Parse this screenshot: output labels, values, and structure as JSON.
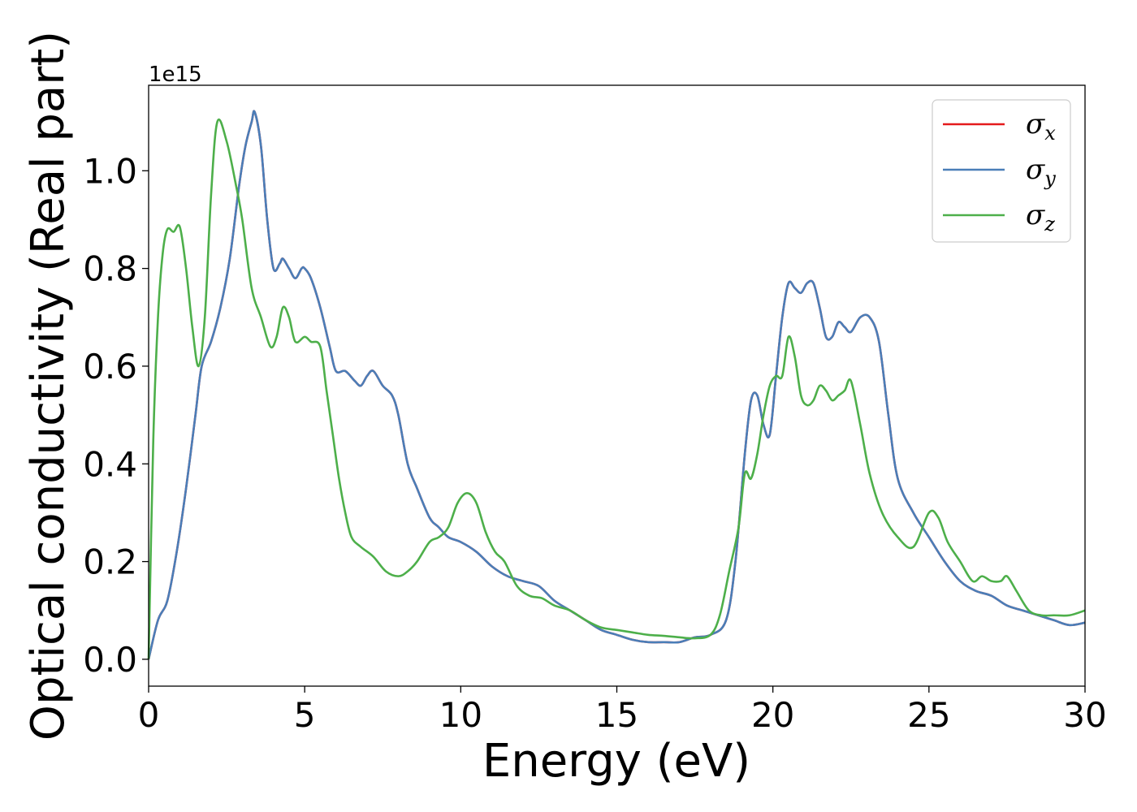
{
  "chart_data": {
    "type": "line",
    "title": "",
    "xlabel": "Energy (eV)",
    "ylabel": "Optical conductivity (Real part)",
    "y_offset_label": "1e15",
    "xlim": [
      0,
      30
    ],
    "ylim": [
      -0.055,
      1.175
    ],
    "xticks": [
      0,
      5,
      10,
      15,
      20,
      25,
      30
    ],
    "yticks": [
      0.0,
      0.2,
      0.4,
      0.6,
      0.8,
      1.0
    ],
    "xtick_labels": [
      "0",
      "5",
      "10",
      "15",
      "20",
      "25",
      "30"
    ],
    "ytick_labels": [
      "0.0",
      "0.2",
      "0.4",
      "0.6",
      "0.8",
      "1.0"
    ],
    "grid": false,
    "legend_position": "top-right",
    "series": [
      {
        "name": "σx",
        "symbol": "σ",
        "subscript": "x",
        "color": "#e41a1c",
        "x": [
          0,
          0.3,
          0.6,
          0.9,
          1.2,
          1.5,
          1.7,
          2.0,
          2.3,
          2.6,
          2.9,
          3.1,
          3.3,
          3.4,
          3.6,
          3.8,
          4.0,
          4.2,
          4.3,
          4.5,
          4.7,
          4.9,
          5.0,
          5.2,
          5.5,
          5.8,
          6.0,
          6.3,
          6.6,
          6.8,
          7.0,
          7.2,
          7.5,
          7.8,
          8.0,
          8.3,
          8.6,
          9.0,
          9.3,
          9.6,
          10.0,
          10.5,
          11.0,
          11.5,
          12.0,
          12.5,
          13.0,
          13.5,
          14.0,
          14.5,
          15.0,
          15.5,
          16.0,
          16.5,
          17.0,
          17.5,
          18.0,
          18.5,
          18.8,
          19.1,
          19.3,
          19.5,
          19.7,
          19.9,
          20.1,
          20.3,
          20.5,
          20.7,
          20.9,
          21.1,
          21.3,
          21.5,
          21.7,
          21.9,
          22.1,
          22.3,
          22.5,
          22.8,
          23.1,
          23.4,
          23.7,
          24.0,
          24.5,
          25.0,
          25.5,
          26.0,
          26.5,
          27.0,
          27.5,
          28.0,
          28.5,
          29.0,
          29.5,
          30.0
        ],
        "y": [
          0.0,
          0.08,
          0.12,
          0.22,
          0.35,
          0.5,
          0.6,
          0.65,
          0.72,
          0.82,
          0.97,
          1.05,
          1.1,
          1.12,
          1.05,
          0.9,
          0.8,
          0.81,
          0.82,
          0.8,
          0.78,
          0.8,
          0.8,
          0.78,
          0.72,
          0.64,
          0.59,
          0.59,
          0.57,
          0.56,
          0.58,
          0.59,
          0.56,
          0.54,
          0.5,
          0.4,
          0.35,
          0.29,
          0.27,
          0.25,
          0.24,
          0.22,
          0.19,
          0.17,
          0.16,
          0.15,
          0.12,
          0.1,
          0.08,
          0.06,
          0.05,
          0.04,
          0.035,
          0.035,
          0.035,
          0.045,
          0.05,
          0.08,
          0.2,
          0.42,
          0.53,
          0.54,
          0.48,
          0.46,
          0.58,
          0.7,
          0.77,
          0.76,
          0.75,
          0.77,
          0.77,
          0.72,
          0.66,
          0.66,
          0.69,
          0.68,
          0.67,
          0.7,
          0.7,
          0.65,
          0.5,
          0.37,
          0.3,
          0.25,
          0.2,
          0.16,
          0.14,
          0.13,
          0.11,
          0.1,
          0.09,
          0.08,
          0.07,
          0.075
        ]
      },
      {
        "name": "σy",
        "symbol": "σ",
        "subscript": "y",
        "color": "#4a7eb8",
        "x": [
          0,
          0.3,
          0.6,
          0.9,
          1.2,
          1.5,
          1.7,
          2.0,
          2.3,
          2.6,
          2.9,
          3.1,
          3.3,
          3.4,
          3.6,
          3.8,
          4.0,
          4.2,
          4.3,
          4.5,
          4.7,
          4.9,
          5.0,
          5.2,
          5.5,
          5.8,
          6.0,
          6.3,
          6.6,
          6.8,
          7.0,
          7.2,
          7.5,
          7.8,
          8.0,
          8.3,
          8.6,
          9.0,
          9.3,
          9.6,
          10.0,
          10.5,
          11.0,
          11.5,
          12.0,
          12.5,
          13.0,
          13.5,
          14.0,
          14.5,
          15.0,
          15.5,
          16.0,
          16.5,
          17.0,
          17.5,
          18.0,
          18.5,
          18.8,
          19.1,
          19.3,
          19.5,
          19.7,
          19.9,
          20.1,
          20.3,
          20.5,
          20.7,
          20.9,
          21.1,
          21.3,
          21.5,
          21.7,
          21.9,
          22.1,
          22.3,
          22.5,
          22.8,
          23.1,
          23.4,
          23.7,
          24.0,
          24.5,
          25.0,
          25.5,
          26.0,
          26.5,
          27.0,
          27.5,
          28.0,
          28.5,
          29.0,
          29.5,
          30.0
        ],
        "y": [
          0.0,
          0.08,
          0.12,
          0.22,
          0.35,
          0.5,
          0.6,
          0.65,
          0.72,
          0.82,
          0.97,
          1.05,
          1.1,
          1.12,
          1.05,
          0.9,
          0.8,
          0.81,
          0.82,
          0.8,
          0.78,
          0.8,
          0.8,
          0.78,
          0.72,
          0.64,
          0.59,
          0.59,
          0.57,
          0.56,
          0.58,
          0.59,
          0.56,
          0.54,
          0.5,
          0.4,
          0.35,
          0.29,
          0.27,
          0.25,
          0.24,
          0.22,
          0.19,
          0.17,
          0.16,
          0.15,
          0.12,
          0.1,
          0.08,
          0.06,
          0.05,
          0.04,
          0.035,
          0.035,
          0.035,
          0.045,
          0.05,
          0.08,
          0.2,
          0.42,
          0.53,
          0.54,
          0.48,
          0.46,
          0.58,
          0.7,
          0.77,
          0.76,
          0.75,
          0.77,
          0.77,
          0.72,
          0.66,
          0.66,
          0.69,
          0.68,
          0.67,
          0.7,
          0.7,
          0.65,
          0.5,
          0.37,
          0.3,
          0.25,
          0.2,
          0.16,
          0.14,
          0.13,
          0.11,
          0.1,
          0.09,
          0.08,
          0.07,
          0.075
        ]
      },
      {
        "name": "σz",
        "symbol": "σ",
        "subscript": "z",
        "color": "#4daf4a",
        "x": [
          0,
          0.15,
          0.3,
          0.45,
          0.6,
          0.8,
          1.0,
          1.2,
          1.4,
          1.6,
          1.8,
          2.0,
          2.2,
          2.5,
          2.8,
          3.0,
          3.3,
          3.6,
          3.9,
          4.1,
          4.3,
          4.5,
          4.7,
          5.0,
          5.2,
          5.5,
          5.7,
          5.9,
          6.1,
          6.3,
          6.5,
          6.8,
          7.2,
          7.6,
          8.0,
          8.3,
          8.6,
          9.0,
          9.3,
          9.6,
          9.9,
          10.2,
          10.5,
          10.8,
          11.1,
          11.4,
          11.8,
          12.2,
          12.6,
          13.0,
          13.5,
          14.0,
          14.5,
          15.0,
          15.5,
          16.0,
          16.5,
          17.0,
          17.5,
          18.0,
          18.3,
          18.6,
          18.9,
          19.1,
          19.3,
          19.5,
          19.7,
          19.9,
          20.1,
          20.3,
          20.5,
          20.7,
          20.9,
          21.1,
          21.3,
          21.5,
          21.7,
          21.9,
          22.1,
          22.3,
          22.5,
          22.8,
          23.1,
          23.5,
          24.0,
          24.5,
          25.0,
          25.3,
          25.6,
          26.0,
          26.4,
          26.7,
          27.0,
          27.3,
          27.5,
          27.8,
          28.2,
          28.6,
          29.0,
          29.5,
          30.0
        ],
        "y": [
          0.0,
          0.45,
          0.7,
          0.83,
          0.88,
          0.875,
          0.885,
          0.8,
          0.68,
          0.6,
          0.7,
          0.95,
          1.1,
          1.06,
          0.97,
          0.9,
          0.76,
          0.7,
          0.64,
          0.66,
          0.72,
          0.7,
          0.65,
          0.66,
          0.65,
          0.64,
          0.55,
          0.46,
          0.37,
          0.3,
          0.25,
          0.23,
          0.21,
          0.18,
          0.17,
          0.18,
          0.2,
          0.24,
          0.25,
          0.27,
          0.32,
          0.34,
          0.32,
          0.26,
          0.22,
          0.2,
          0.15,
          0.13,
          0.125,
          0.11,
          0.1,
          0.08,
          0.065,
          0.06,
          0.055,
          0.05,
          0.048,
          0.045,
          0.043,
          0.05,
          0.09,
          0.18,
          0.27,
          0.38,
          0.37,
          0.42,
          0.5,
          0.56,
          0.58,
          0.58,
          0.66,
          0.62,
          0.54,
          0.52,
          0.53,
          0.56,
          0.55,
          0.53,
          0.54,
          0.55,
          0.57,
          0.48,
          0.38,
          0.3,
          0.25,
          0.23,
          0.3,
          0.29,
          0.24,
          0.2,
          0.16,
          0.17,
          0.16,
          0.16,
          0.17,
          0.14,
          0.1,
          0.09,
          0.09,
          0.09,
          0.1
        ]
      }
    ]
  }
}
